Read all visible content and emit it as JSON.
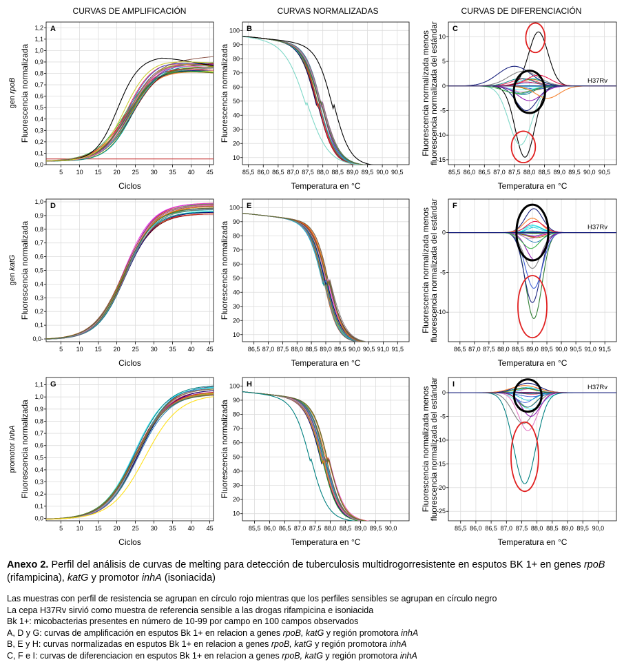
{
  "column_titles": [
    "CURVAS DE AMPLIFICACIÓN",
    "CURVAS NORMALIZADAS",
    "CURVAS DE DIFERENCIACIÓN"
  ],
  "row_labels": [
    {
      "prefix": "gen ",
      "gene": "rpoB"
    },
    {
      "prefix": "gen ",
      "gene": "katG"
    },
    {
      "prefix": "promotor ",
      "gene": "inhA"
    }
  ],
  "caption": {
    "bold": "Anexo 2.",
    "parts": [
      {
        "t": " Perfil del análisis de curvas de melting para detección de tuberculosis multidrogorresistente en esputos BK 1+ en genes ",
        "i": false
      },
      {
        "t": "rpoB",
        "i": true
      },
      {
        "t": " (rifampicina), ",
        "i": false
      },
      {
        "t": "katG",
        "i": true
      },
      {
        "t": " y promotor ",
        "i": false
      },
      {
        "t": "inhA",
        "i": true
      },
      {
        "t": " (isoniacida)",
        "i": false
      }
    ]
  },
  "notes": [
    [
      {
        "t": "Las muestras con perfil de resistencia se agrupan en círculo rojo mientras que los perfiles sensibles se agrupan en círculo negro",
        "i": false
      }
    ],
    [
      {
        "t": "La cepa H37Rv sirvió como muestra de referencia sensible a las drogas rifampicina e isoniacida",
        "i": false
      }
    ],
    [
      {
        "t": "Bk 1+: micobacterias presentes en número de 10-99 por campo en 100 campos observados",
        "i": false
      }
    ],
    [
      {
        "t": "A, D y G: curvas de amplificación en esputos Bk 1+ en relacion a genes ",
        "i": false
      },
      {
        "t": "rpoB, katG",
        "i": true
      },
      {
        "t": " y región promotora ",
        "i": false
      },
      {
        "t": "inhA",
        "i": true
      }
    ],
    [
      {
        "t": "B, E y H: curvas normalizadas en esputos Bk 1+ en relacion a genes ",
        "i": false
      },
      {
        "t": "rpoB, katG",
        "i": true
      },
      {
        "t": " y región promotora ",
        "i": false
      },
      {
        "t": "inhA",
        "i": true
      }
    ],
    [
      {
        "t": "C, F e I: curvas de diferenciacion en esputos Bk 1+ en relacion a genes ",
        "i": false
      },
      {
        "t": "rpoB, katG",
        "i": true
      },
      {
        "t": " y región promotora ",
        "i": false
      },
      {
        "t": "inhA",
        "i": true
      }
    ]
  ],
  "colors": {
    "resistant_circle": "#e02020",
    "sensitive_circle": "#000000",
    "threshold": "#c02020",
    "grid": "#dcdcdc"
  },
  "palette": [
    "#e6194b",
    "#3cb44b",
    "#ffe119",
    "#4363d8",
    "#f58231",
    "#911eb4",
    "#46f0f0",
    "#f032e6",
    "#bcbd22",
    "#008080",
    "#9a6324",
    "#800000",
    "#808000",
    "#000075",
    "#808080",
    "#17becf",
    "#d62728",
    "#2ca02c",
    "#1f77b4",
    "#ff7f0e",
    "#8c564b",
    "#e377c2",
    "#7f7f7f",
    "#556b2f"
  ],
  "chart_data": [
    {
      "id": "A",
      "type": "line",
      "label": "A",
      "xlabel": "Ciclos",
      "ylabel": "Fluorescencia normalizada",
      "xlim": [
        1,
        46
      ],
      "ylim": [
        0,
        1.25
      ],
      "xticks": [
        5,
        10,
        15,
        20,
        25,
        30,
        35,
        40,
        45
      ],
      "xticklabels": [
        "5",
        "10",
        "15",
        "20",
        "25",
        "30",
        "35",
        "40",
        "45"
      ],
      "yticks": [
        0,
        0.1,
        0.2,
        0.3,
        0.4,
        0.5,
        0.6,
        0.7,
        0.8,
        0.9,
        1.0,
        1.1,
        1.2
      ],
      "yticklabels": [
        "0,0",
        "0,1",
        "0,2",
        "0,3",
        "0,4",
        "0,5",
        "0,6",
        "0,7",
        "0,8",
        "0,9",
        "1,0",
        "1,1",
        "1,2"
      ],
      "threshold": 0.05,
      "baseline": 0.03,
      "curves": {
        "n": 24,
        "ct": [
          22.5,
          24.3
        ],
        "slope": [
          0.24,
          0.3
        ],
        "plateau": [
          0.82,
          0.92
        ],
        "drift": [
          -0.004,
          0.003
        ]
      },
      "extra_curves": [
        {
          "ct": 20.2,
          "slope": 0.34,
          "plateau": 0.95,
          "drift": -0.006,
          "color": "#000000"
        },
        {
          "ct": 22.0,
          "slope": 0.3,
          "plateau": 0.92,
          "drift": -0.002,
          "color": "#cccc33"
        }
      ]
    },
    {
      "id": "B",
      "type": "line",
      "label": "B",
      "xlabel": "Temperatura en °C",
      "ylabel": "Fluorescencia normalizada",
      "xlim": [
        85.3,
        90.9
      ],
      "ylim": [
        5,
        106
      ],
      "xticks": [
        85.5,
        86,
        86.5,
        87,
        87.5,
        88,
        88.5,
        89,
        89.5,
        90,
        90.5
      ],
      "xticklabels": [
        "85,5",
        "86,0",
        "86,5",
        "87,0",
        "87,5",
        "88,0",
        "88,5",
        "89,0",
        "89,5",
        "90,0",
        "90,5"
      ],
      "yticks": [
        10,
        20,
        30,
        40,
        50,
        60,
        70,
        80,
        90,
        100
      ],
      "yticklabels": [
        "10",
        "20",
        "30",
        "40",
        "50",
        "60",
        "70",
        "80",
        "90",
        "100"
      ],
      "curves": {
        "n": 24,
        "tm": [
          87.8,
          88.0
        ],
        "w": [
          0.26,
          0.3
        ]
      },
      "extra_curves": [
        {
          "tm": 87.45,
          "w": 0.36,
          "color": "#7fd8c8"
        },
        {
          "tm": 88.35,
          "w": 0.28,
          "color": "#000000"
        }
      ]
    },
    {
      "id": "C",
      "type": "line",
      "label": "C",
      "xlabel": "Temperatura en °C",
      "ylabel": [
        "Fluorescencia normalizada menos",
        "fluorescencia normalizada del estándar"
      ],
      "xlim": [
        85.3,
        90.9
      ],
      "ylim": [
        -16,
        13
      ],
      "xticks": [
        85.5,
        86,
        86.5,
        87,
        87.5,
        88,
        88.5,
        89,
        89.5,
        90,
        90.5
      ],
      "xticklabels": [
        "85,5",
        "86,0",
        "86,5",
        "87,0",
        "87,5",
        "88,0",
        "88,5",
        "89,0",
        "89,5",
        "90,0",
        "90,5"
      ],
      "yticks": [
        -15,
        -10,
        -5,
        0,
        5,
        10
      ],
      "yticklabels": [
        "-15",
        "-10",
        "-5",
        "0",
        "5",
        "10"
      ],
      "reference": "H37Rv",
      "peaks": [
        {
          "a": 11.0,
          "c": 88.3,
          "s": 0.32,
          "color": "#000000"
        },
        {
          "a": -14.5,
          "c": 87.85,
          "s": 0.32,
          "color": "#000000"
        },
        {
          "a": -12.0,
          "c": 87.7,
          "s": 0.38,
          "color": "#7fd8c8"
        },
        {
          "a": -5.0,
          "c": 87.9,
          "s": 0.35,
          "color": "#1a237e"
        },
        {
          "a": 4.0,
          "c": 87.5,
          "s": 0.55,
          "color": "#1a237e"
        },
        {
          "a": 3.0,
          "c": 87.8,
          "s": 0.5,
          "color": "#808080"
        },
        {
          "a": 2.2,
          "c": 88.3,
          "s": 0.4,
          "color": "#e6194b"
        },
        {
          "a": -3.0,
          "c": 88.0,
          "s": 0.4,
          "color": "#911eb4"
        },
        {
          "a": -1.5,
          "c": 87.6,
          "s": 0.45,
          "color": "#3cb44b"
        },
        {
          "a": -2.5,
          "c": 88.6,
          "s": 0.4,
          "color": "#f58231"
        }
      ],
      "small": {
        "n": 14,
        "c": [
          87.7,
          88.3
        ],
        "a": [
          -1.8,
          1.8
        ],
        "s": [
          0.3,
          0.45
        ]
      },
      "circles": [
        {
          "type": "resistant",
          "cx": 88.2,
          "cy": 9.8,
          "rx": 0.32,
          "ry": 3.0
        },
        {
          "type": "resistant",
          "cx": 87.8,
          "cy": -12.4,
          "rx": 0.4,
          "ry": 3.2
        },
        {
          "type": "sensitive",
          "cx": 88.0,
          "cy": -1.2,
          "rx": 0.52,
          "ry": 4.3
        }
      ]
    },
    {
      "id": "D",
      "type": "line",
      "label": "D",
      "xlabel": "Ciclos",
      "ylabel": "Fluorescencia normalizada",
      "xlim": [
        1,
        46
      ],
      "ylim": [
        -0.02,
        1.02
      ],
      "xticks": [
        5,
        10,
        15,
        20,
        25,
        30,
        35,
        40,
        45
      ],
      "xticklabels": [
        "5",
        "10",
        "15",
        "20",
        "25",
        "30",
        "35",
        "40",
        "45"
      ],
      "yticks": [
        0,
        0.1,
        0.2,
        0.3,
        0.4,
        0.5,
        0.6,
        0.7,
        0.8,
        0.9,
        1.0
      ],
      "yticklabels": [
        "0,0-",
        "0,1",
        "0,2",
        "0,3",
        "0,4",
        "0,5",
        "0,6",
        "0,7",
        "0,8",
        "0,9",
        "1,0"
      ],
      "baseline": -0.005,
      "curves": {
        "n": 24,
        "ct": [
          21.8,
          22.6
        ],
        "slope": [
          0.24,
          0.27
        ],
        "plateau": [
          0.91,
          1.0
        ],
        "drift": [
          0,
          0
        ]
      },
      "extra_curves": []
    },
    {
      "id": "E",
      "type": "line",
      "label": "E",
      "xlabel": "Temperatura en °C",
      "ylabel": "Fluorescencia normalizada",
      "xlim": [
        86.1,
        91.9
      ],
      "ylim": [
        5,
        106
      ],
      "xticks": [
        86.5,
        87,
        87.5,
        88,
        88.5,
        89,
        89.5,
        90,
        90.5,
        91,
        91.5
      ],
      "xticklabels": [
        "86,5",
        "87,0",
        "87,5",
        "88,0",
        "88,5",
        "89,0",
        "89,5",
        "90,0",
        "90,5",
        "91,0",
        "91,5"
      ],
      "yticks": [
        10,
        20,
        30,
        40,
        50,
        60,
        70,
        80,
        90,
        100
      ],
      "yticklabels": [
        "10",
        "20",
        "30",
        "40",
        "50",
        "60",
        "70",
        "80",
        "90",
        "100"
      ],
      "curves": {
        "n": 24,
        "tm": [
          88.9,
          89.15
        ],
        "w": [
          0.24,
          0.28
        ]
      },
      "extra_curves": []
    },
    {
      "id": "F",
      "type": "line",
      "label": "F",
      "xlabel": "Temperatura en °C",
      "ylabel": [
        "Fluorescencia normalizada menos",
        "fluorescencia normalizada del estándar"
      ],
      "xlim": [
        86.1,
        91.9
      ],
      "ylim": [
        -13.7,
        4.2
      ],
      "xticks": [
        86.5,
        87,
        87.5,
        88,
        88.5,
        89,
        89.5,
        90,
        90.5,
        91,
        91.5
      ],
      "xticklabels": [
        "86,5",
        "87,0",
        "87,5",
        "88,0",
        "88,5",
        "89,0",
        "89,5",
        "90,0",
        "90,5",
        "91,0",
        "91,5"
      ],
      "yticks": [
        -10,
        -5,
        0
      ],
      "yticklabels": [
        "-10",
        "-5",
        "0"
      ],
      "reference": "H37Rv",
      "peaks": [
        {
          "a": -10.8,
          "c": 89.05,
          "s": 0.28,
          "color": "#2e7d32"
        },
        {
          "a": -8.8,
          "c": 89.0,
          "s": 0.28,
          "color": "#1a237e"
        },
        {
          "a": -7.0,
          "c": 89.05,
          "s": 0.3,
          "color": "#4363d8"
        },
        {
          "a": 3.0,
          "c": 89.05,
          "s": 0.3,
          "color": "#1a237e"
        },
        {
          "a": 1.8,
          "c": 89.0,
          "s": 0.3,
          "color": "#f58231"
        },
        {
          "a": 1.4,
          "c": 89.1,
          "s": 0.3,
          "color": "#e6194b"
        },
        {
          "a": -4.5,
          "c": 89.0,
          "s": 0.3,
          "color": "#808080"
        },
        {
          "a": -3.5,
          "c": 89.1,
          "s": 0.3,
          "color": "#911eb4"
        },
        {
          "a": -2.0,
          "c": 88.95,
          "s": 0.3,
          "color": "#3cb44b"
        }
      ],
      "small": {
        "n": 16,
        "c": [
          88.9,
          89.2
        ],
        "a": [
          -1.5,
          1.0
        ],
        "s": [
          0.25,
          0.35
        ]
      },
      "circles": [
        {
          "type": "sensitive",
          "cx": 89.0,
          "cy": 0.0,
          "rx": 0.55,
          "ry": 3.5
        },
        {
          "type": "resistant",
          "cx": 89.0,
          "cy": -9.3,
          "rx": 0.5,
          "ry": 3.9
        }
      ]
    },
    {
      "id": "G",
      "type": "line",
      "label": "G",
      "xlabel": "Ciclos",
      "ylabel": "Fluorescencia normalizada",
      "xlim": [
        1,
        46
      ],
      "ylim": [
        -0.02,
        1.16
      ],
      "xticks": [
        5,
        10,
        15,
        20,
        25,
        30,
        35,
        40,
        45
      ],
      "xticklabels": [
        "5",
        "10",
        "15",
        "20",
        "25",
        "30",
        "35",
        "40",
        "45"
      ],
      "yticks": [
        0,
        0.1,
        0.2,
        0.3,
        0.4,
        0.5,
        0.6,
        0.7,
        0.8,
        0.9,
        1.0,
        1.1
      ],
      "yticklabels": [
        "0,0",
        "0,1",
        "0,2",
        "0,3",
        "0,4",
        "0,5",
        "0,6",
        "0,7",
        "0,8",
        "0,9",
        "1,0",
        "1,1"
      ],
      "baseline": -0.01,
      "curves": {
        "n": 24,
        "ct": [
          24.6,
          25.8
        ],
        "slope": [
          0.22,
          0.25
        ],
        "plateau": [
          1.02,
          1.1
        ],
        "drift": [
          0,
          0
        ]
      },
      "extra_curves": [
        {
          "ct": 27.6,
          "slope": 0.22,
          "plateau": 1.02,
          "drift": 0,
          "color": "#ffe119"
        }
      ]
    },
    {
      "id": "H",
      "type": "line",
      "label": "H",
      "xlabel": "Temperatura en °C",
      "ylabel": "Fluorescencia normalizada",
      "xlim": [
        85.1,
        90.6
      ],
      "ylim": [
        5,
        106
      ],
      "xticks": [
        85.5,
        86,
        86.5,
        87,
        87.5,
        88,
        88.5,
        89,
        89.5,
        90
      ],
      "xticklabels": [
        "85,5",
        "86,0",
        "86,5",
        "87,0",
        "87,5",
        "88,0",
        "88,5",
        "89,0",
        "89,5",
        "90,0"
      ],
      "yticks": [
        10,
        20,
        30,
        40,
        50,
        60,
        70,
        80,
        90,
        100
      ],
      "yticklabels": [
        "10",
        "20",
        "30",
        "40",
        "50",
        "60",
        "70",
        "80",
        "90",
        "100"
      ],
      "curves": {
        "n": 24,
        "tm": [
          87.7,
          87.95
        ],
        "w": [
          0.24,
          0.28
        ]
      },
      "extra_curves": [
        {
          "tm": 87.35,
          "w": 0.28,
          "color": "#008080"
        }
      ]
    },
    {
      "id": "I",
      "type": "line",
      "label": "I",
      "xlabel": "Temperatura en °C",
      "ylabel": [
        "Fluorescencia normalizada menos",
        "fluorescencia normalizada del estándar"
      ],
      "xlim": [
        85.1,
        90.6
      ],
      "ylim": [
        -27,
        3.2
      ],
      "xticks": [
        85.5,
        86,
        86.5,
        87,
        87.5,
        88,
        88.5,
        89,
        89.5,
        90
      ],
      "xticklabels": [
        "85,5",
        "86,0",
        "86,5",
        "87,0",
        "87,5",
        "88,0",
        "88,5",
        "89,0",
        "89,5",
        "90,0"
      ],
      "yticks": [
        -25,
        -20,
        -15,
        -10,
        -5,
        0
      ],
      "yticklabels": [
        "-25",
        "-20",
        "-15",
        "-10",
        "-5",
        "0"
      ],
      "reference": "H37Rv",
      "peaks": [
        {
          "a": -19.2,
          "c": 87.6,
          "s": 0.36,
          "color": "#008080"
        },
        {
          "a": -8.0,
          "c": 87.7,
          "s": 0.3,
          "color": "#e377c2"
        },
        {
          "a": -6.5,
          "c": 87.55,
          "s": 0.35,
          "color": "#808080"
        },
        {
          "a": -5.0,
          "c": 87.8,
          "s": 0.3,
          "color": "#911eb4"
        },
        {
          "a": 2.0,
          "c": 87.7,
          "s": 0.4,
          "color": "#1a237e"
        },
        {
          "a": 1.5,
          "c": 87.6,
          "s": 0.45,
          "color": "#f58231"
        }
      ],
      "small": {
        "n": 14,
        "c": [
          87.5,
          87.9
        ],
        "a": [
          -3.5,
          1.4
        ],
        "s": [
          0.25,
          0.4
        ]
      },
      "circles": [
        {
          "type": "sensitive",
          "cx": 87.7,
          "cy": -0.6,
          "rx": 0.45,
          "ry": 3.4
        },
        {
          "type": "resistant",
          "cx": 87.6,
          "cy": -13.5,
          "rx": 0.45,
          "ry": 7.3
        }
      ]
    }
  ]
}
